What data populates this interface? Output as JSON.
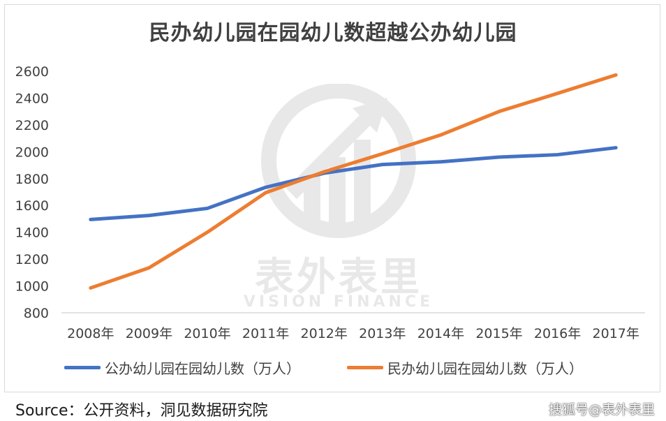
{
  "title": "民办幼儿园在园幼儿数超越公办幼儿园",
  "source_text": "Source：公开资料，洞见数据研究院",
  "credit_text": "搜狐号@表外表里",
  "watermark": {
    "cn": "表外表里",
    "en": "VISION FINANCE"
  },
  "chart_data": {
    "type": "line",
    "title": "民办幼儿园在园幼儿数超越公办幼儿园",
    "xlabel": "",
    "ylabel": "",
    "x": [
      "2008年",
      "2009年",
      "2010年",
      "2011年",
      "2012年",
      "2013年",
      "2014年",
      "2015年",
      "2016年",
      "2017年"
    ],
    "ylim": [
      800,
      2600
    ],
    "yticks": [
      800,
      1000,
      1200,
      1400,
      1600,
      1800,
      2000,
      2200,
      2400,
      2600
    ],
    "grid": false,
    "legend": "bottom",
    "series": [
      {
        "name": "公办幼儿园在园幼儿数（万人）",
        "color": "#4472c4",
        "values": [
          1495,
          1525,
          1578,
          1735,
          1840,
          1905,
          1925,
          1960,
          1978,
          2030
        ]
      },
      {
        "name": "民办幼儿园在园幼儿数（万人）",
        "color": "#ed7d31",
        "values": [
          985,
          1135,
          1400,
          1695,
          1850,
          1985,
          2125,
          2300,
          2435,
          2572
        ]
      }
    ]
  }
}
